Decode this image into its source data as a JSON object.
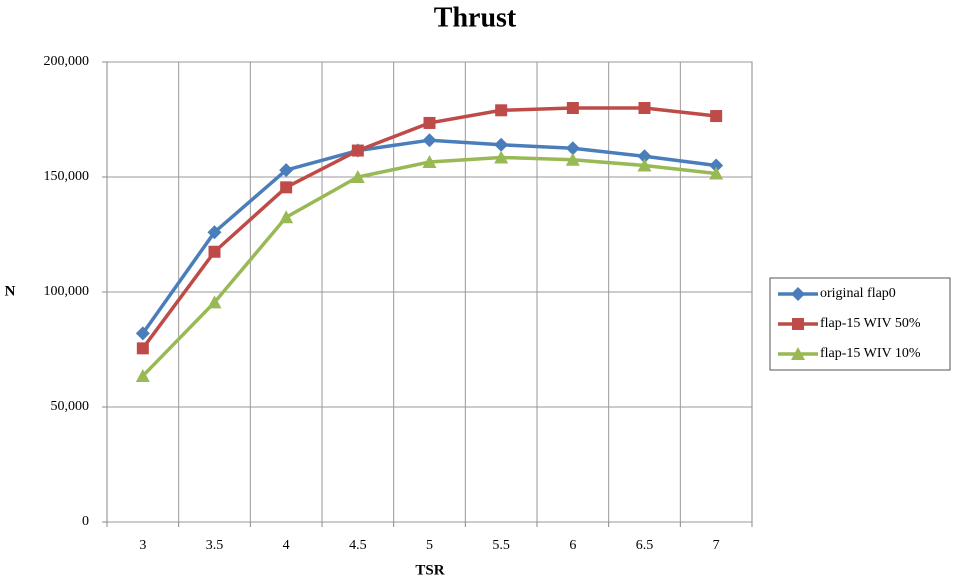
{
  "chart_data": {
    "type": "line",
    "title": "Thrust",
    "x_label": "TSR",
    "y_label": "N",
    "categories": [
      "3",
      "3.5",
      "4",
      "4.5",
      "5",
      "5.5",
      "6",
      "6.5",
      "7"
    ],
    "series": [
      {
        "name": "original flap0",
        "color": "#4a7ebb",
        "marker": "diamond",
        "values": [
          82000,
          126000,
          153000,
          161500,
          166000,
          164000,
          162500,
          159000,
          155000
        ]
      },
      {
        "name": "flap-15 WIV 50%",
        "color": "#be4b48",
        "marker": "square",
        "values": [
          75500,
          117500,
          145500,
          161500,
          173500,
          179000,
          180000,
          180000,
          176500
        ]
      },
      {
        "name": "flap-15 WIV 10%",
        "color": "#98b954",
        "marker": "triangle",
        "values": [
          63500,
          95500,
          132500,
          150000,
          156500,
          158500,
          157500,
          155000,
          151500
        ]
      }
    ],
    "ylim": [
      0,
      200000
    ],
    "yticks": [
      0,
      {
        "value": 50000,
        "label": "50,000"
      },
      {
        "value": 100000,
        "label": "100,000"
      },
      {
        "value": 150000,
        "label": "150,000"
      },
      {
        "value": 200000,
        "label": "200,000"
      }
    ],
    "grid": true,
    "legend": "right"
  }
}
